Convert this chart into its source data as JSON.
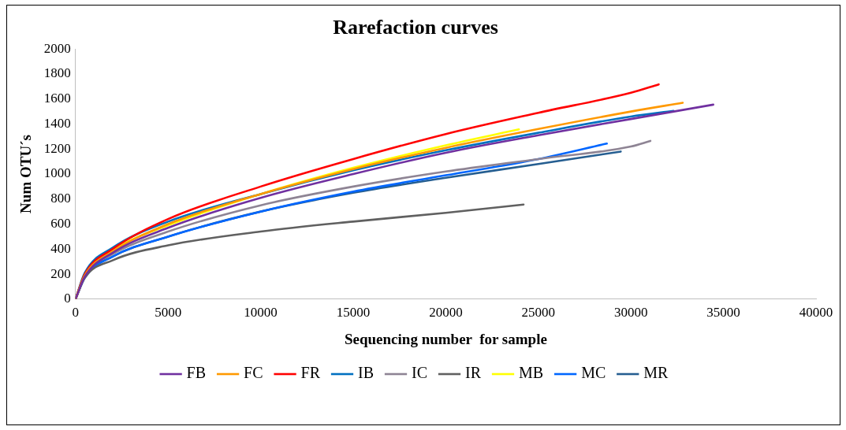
{
  "chart_data": {
    "type": "line",
    "title": "Rarefaction curves",
    "xlabel": "Sequencing number  for sample",
    "ylabel": "Num OTU´s",
    "xlim": [
      0,
      40000
    ],
    "xticks": [
      0,
      5000,
      10000,
      15000,
      20000,
      25000,
      30000,
      35000,
      40000
    ],
    "ylim": [
      0,
      2000
    ],
    "yticks": [
      0,
      200,
      400,
      600,
      800,
      1000,
      1200,
      1400,
      1600,
      1800,
      2000
    ],
    "grid": false,
    "legend": "bottom",
    "marker": "none",
    "line_style": "solid",
    "series": [
      {
        "name": "FB",
        "color": "#7030a0",
        "x": [
          0,
          500,
          2000,
          5000,
          10000,
          15000,
          20000,
          25000,
          30000,
          34450
        ],
        "values": [
          0,
          180,
          370,
          570,
          810,
          1000,
          1170,
          1310,
          1440,
          1555
        ]
      },
      {
        "name": "FC",
        "color": "#ff9900",
        "x": [
          0,
          500,
          2000,
          5000,
          10000,
          15000,
          20000,
          25000,
          30000,
          32800
        ],
        "values": [
          0,
          190,
          380,
          600,
          840,
          1040,
          1210,
          1360,
          1500,
          1570
        ]
      },
      {
        "name": "FR",
        "color": "#ff0000",
        "x": [
          0,
          500,
          2000,
          5000,
          10000,
          15000,
          20000,
          25000,
          30000,
          31500
        ],
        "values": [
          0,
          200,
          400,
          640,
          900,
          1120,
          1320,
          1490,
          1650,
          1717
        ]
      },
      {
        "name": "IB",
        "color": "#0070c0",
        "x": [
          0,
          500,
          2000,
          5000,
          10000,
          15000,
          20000,
          25000,
          30000,
          32300
        ],
        "values": [
          0,
          210,
          410,
          620,
          840,
          1030,
          1190,
          1330,
          1460,
          1505
        ]
      },
      {
        "name": "IC",
        "color": "#8e8494",
        "x": [
          0,
          500,
          2000,
          5000,
          10000,
          15000,
          20000,
          25000,
          30000,
          31050
        ],
        "values": [
          0,
          190,
          360,
          540,
          750,
          900,
          1020,
          1120,
          1220,
          1265
        ]
      },
      {
        "name": "IR",
        "color": "#606060",
        "x": [
          0,
          500,
          2000,
          5000,
          10000,
          15000,
          20000,
          24200
        ],
        "values": [
          0,
          170,
          310,
          430,
          540,
          620,
          690,
          756
        ]
      },
      {
        "name": "MB",
        "color": "#ffff00",
        "x": [
          0,
          500,
          2000,
          5000,
          10000,
          15000,
          20000,
          23950
        ],
        "values": [
          0,
          190,
          390,
          590,
          840,
          1050,
          1230,
          1357
        ]
      },
      {
        "name": "MC",
        "color": "#0066ff",
        "x": [
          0,
          500,
          2000,
          5000,
          10000,
          15000,
          20000,
          25000,
          28700
        ],
        "values": [
          0,
          170,
          340,
          500,
          700,
          860,
          990,
          1120,
          1244
        ]
      },
      {
        "name": "MR",
        "color": "#255e91",
        "x": [
          0,
          500,
          2000,
          5000,
          10000,
          15000,
          20000,
          25000,
          29450
        ],
        "values": [
          0,
          180,
          340,
          500,
          700,
          850,
          970,
          1080,
          1180
        ]
      }
    ]
  }
}
